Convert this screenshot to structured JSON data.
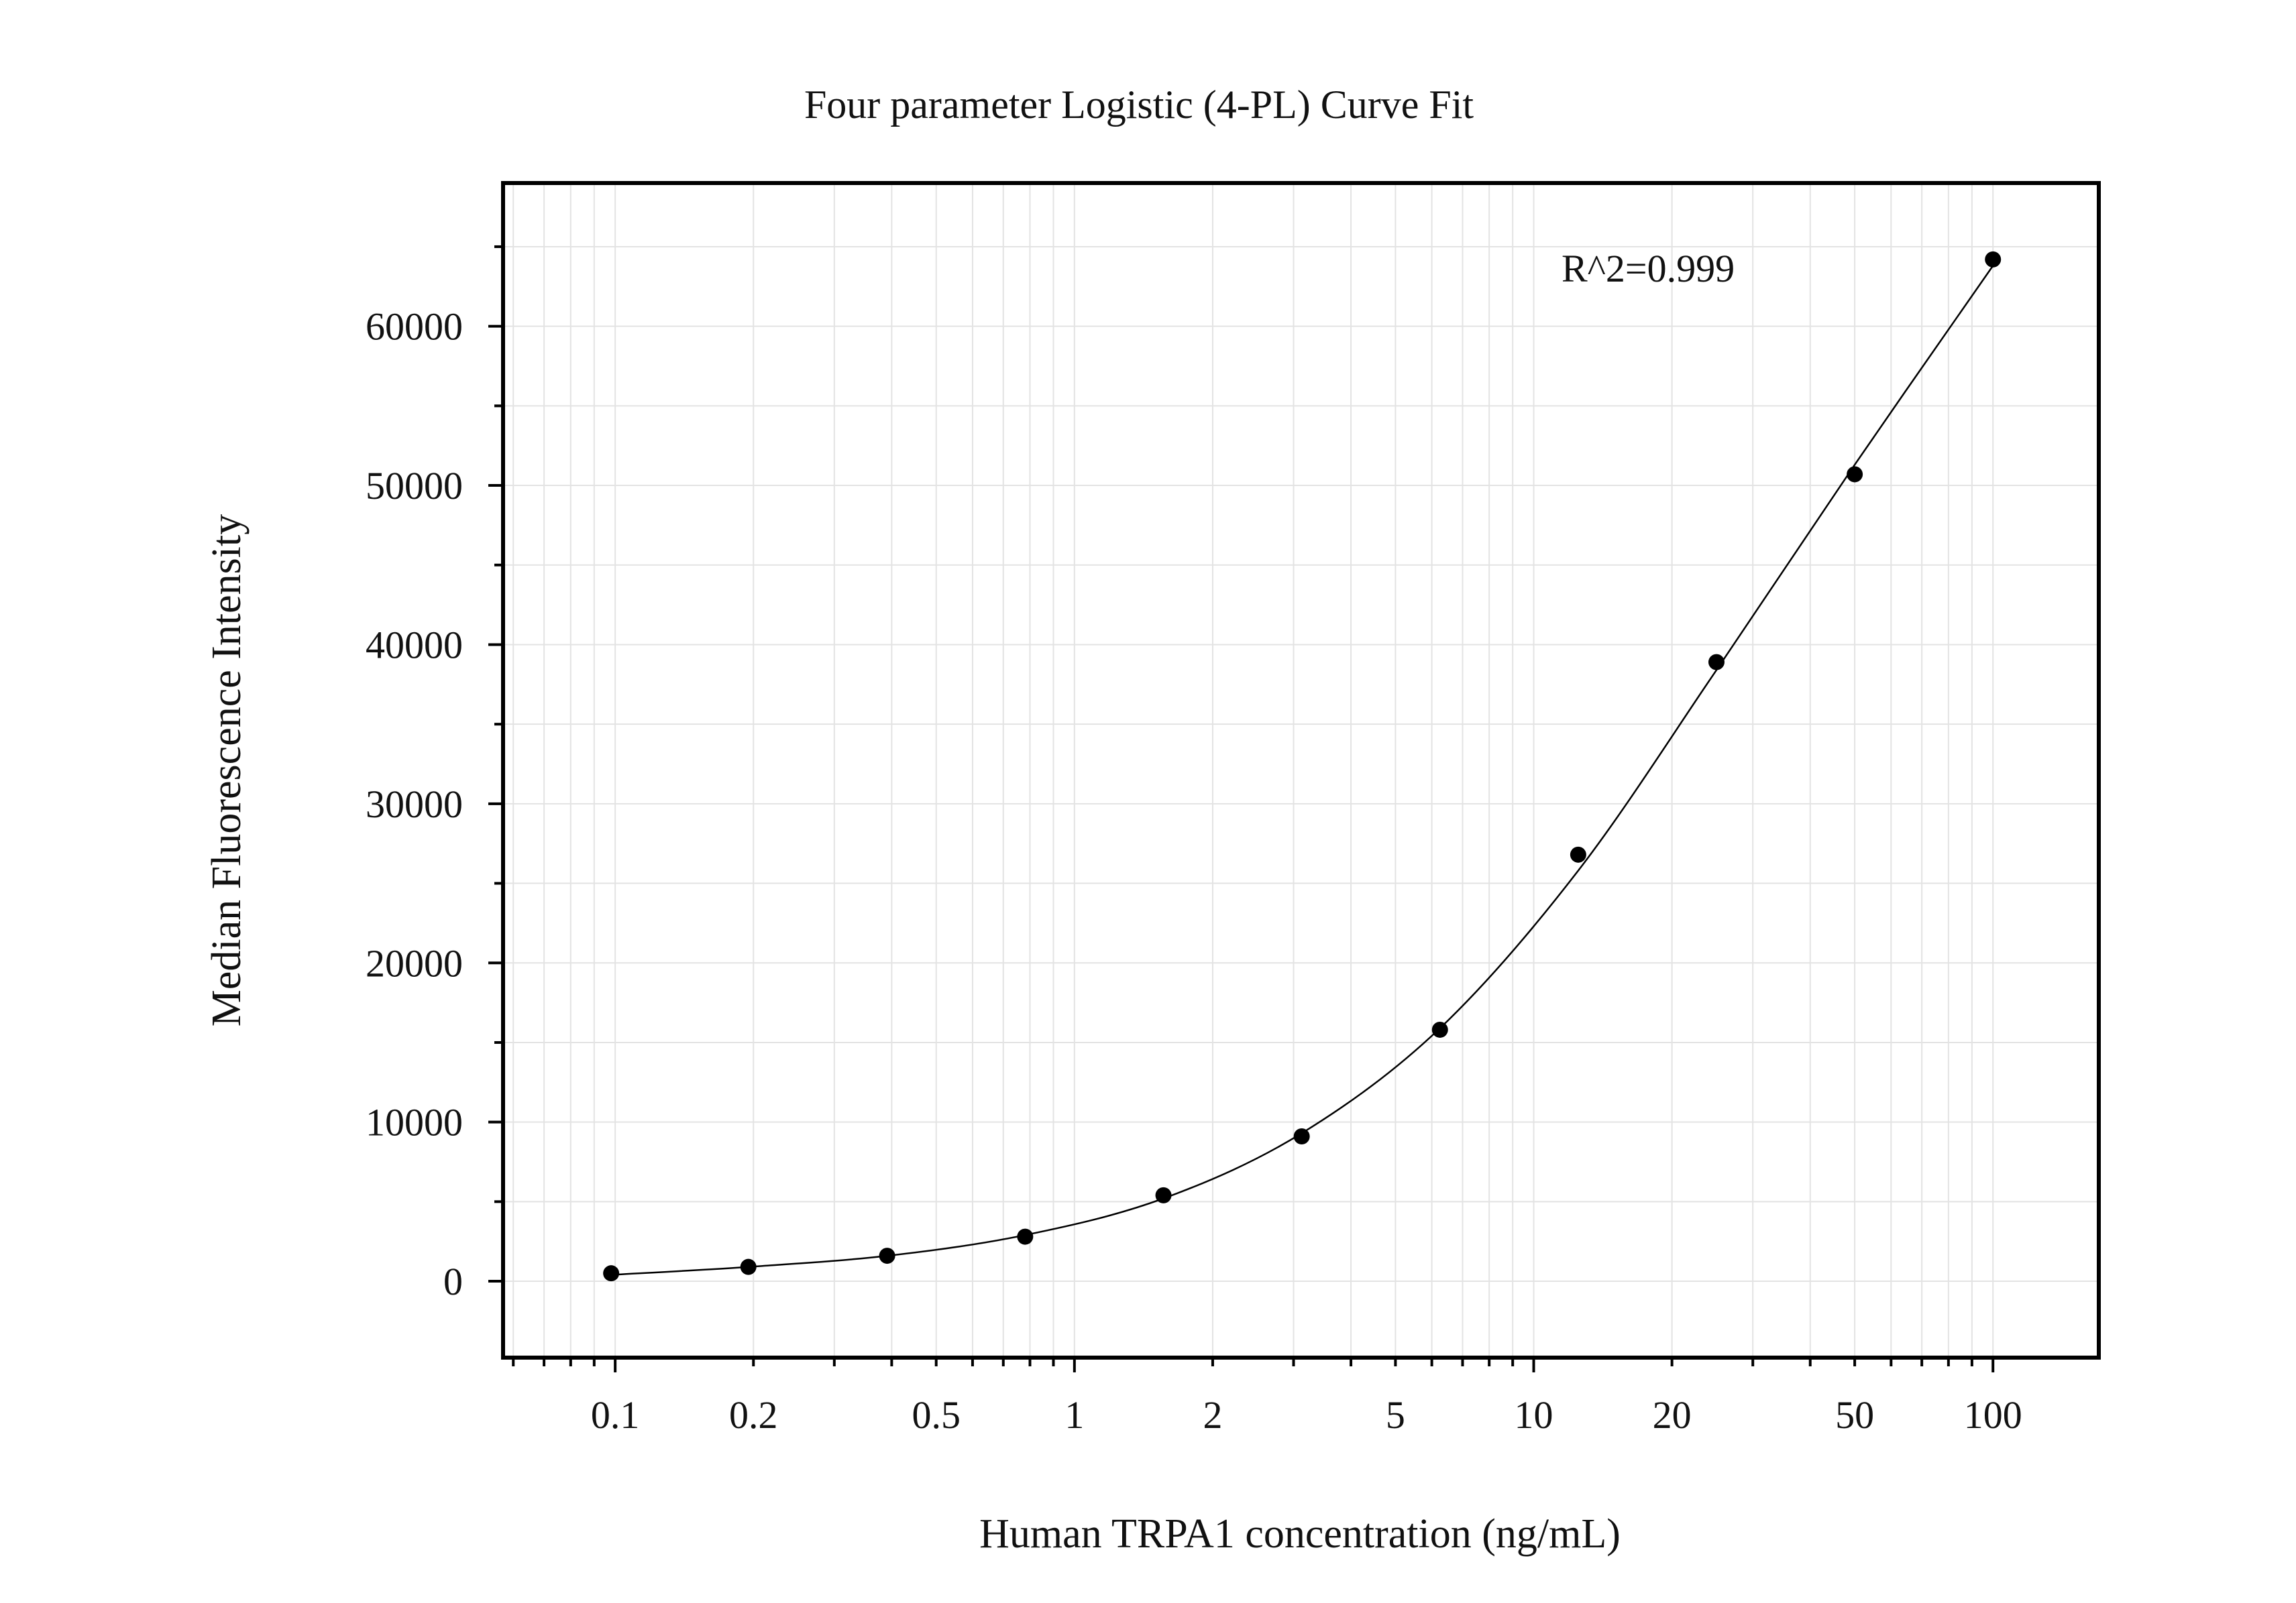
{
  "chart_data": {
    "type": "scatter",
    "title": "Four parameter Logistic (4-PL) Curve Fit",
    "xlabel": "Human TRPA1 concentration (ng/mL)",
    "ylabel": "Median Fluorescence Intensity",
    "x_scale": "log",
    "xlim": [
      0.057,
      170
    ],
    "ylim": [
      -4800,
      69000
    ],
    "x_ticks": [
      {
        "value": 0.1,
        "label": "0.1"
      },
      {
        "value": 0.2,
        "label": "0.2"
      },
      {
        "value": 0.5,
        "label": "0.5"
      },
      {
        "value": 1,
        "label": "1"
      },
      {
        "value": 2,
        "label": "2"
      },
      {
        "value": 5,
        "label": "5"
      },
      {
        "value": 10,
        "label": "10"
      },
      {
        "value": 20,
        "label": "20"
      },
      {
        "value": 50,
        "label": "50"
      },
      {
        "value": 100,
        "label": "100"
      }
    ],
    "y_ticks": [
      {
        "value": 0,
        "label": "0"
      },
      {
        "value": 10000,
        "label": "10000"
      },
      {
        "value": 20000,
        "label": "20000"
      },
      {
        "value": 30000,
        "label": "30000"
      },
      {
        "value": 40000,
        "label": "40000"
      },
      {
        "value": 50000,
        "label": "50000"
      },
      {
        "value": 60000,
        "label": "60000"
      }
    ],
    "grid": true,
    "annotation": "R^2=0.999",
    "series": [
      {
        "x": [
          0.098,
          0.195,
          0.391,
          0.781,
          1.5625,
          3.125,
          6.25,
          12.5,
          25,
          50,
          100
        ],
        "y": [
          500,
          900,
          1600,
          2800,
          5400,
          9100,
          15800,
          26800,
          38900,
          50700,
          64200
        ]
      }
    ],
    "fit_curve": {
      "x": [
        0.098,
        0.195,
        0.391,
        0.781,
        1.5625,
        3.125,
        6.25,
        12.5,
        25,
        50,
        100
      ],
      "y": [
        400,
        900,
        1600,
        2900,
        5200,
        9300,
        15900,
        25800,
        38400,
        51300,
        63800
      ]
    },
    "colors": {
      "points": "#000000",
      "curve": "#000000",
      "grid": "#e3e3e3",
      "axes": "#000000"
    }
  }
}
